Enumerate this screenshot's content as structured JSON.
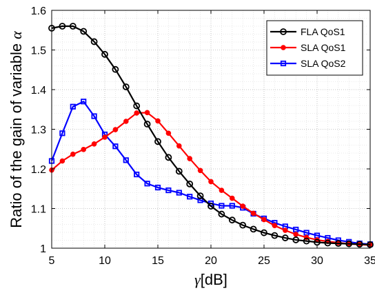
{
  "chart_data": {
    "type": "line",
    "xlabel": "γ[dB]",
    "ylabel": "Ratio of the gain of variable α",
    "xlim": [
      5,
      35
    ],
    "ylim": [
      1,
      1.6
    ],
    "xticks": [
      5,
      10,
      15,
      20,
      25,
      30,
      35
    ],
    "yticks": [
      1,
      1.1,
      1.2,
      1.3,
      1.4,
      1.5,
      1.6
    ],
    "xtick_labels": [
      "5",
      "10",
      "15",
      "20",
      "25",
      "30",
      "35"
    ],
    "ytick_labels": [
      "1",
      "1.1",
      "1.2",
      "1.3",
      "1.4",
      "1.5",
      "1.6"
    ],
    "grid": "dotted major and minor",
    "legend_position": "top-right",
    "x": [
      5,
      6,
      7,
      8,
      9,
      10,
      11,
      12,
      13,
      14,
      15,
      16,
      17,
      18,
      19,
      20,
      21,
      22,
      23,
      24,
      25,
      26,
      27,
      28,
      29,
      30,
      31,
      32,
      33,
      34,
      35
    ],
    "series": [
      {
        "name": "FLA QoS1",
        "color": "#000000",
        "marker": "circle",
        "values": [
          1.555,
          1.56,
          1.56,
          1.547,
          1.521,
          1.489,
          1.451,
          1.407,
          1.359,
          1.313,
          1.269,
          1.229,
          1.194,
          1.162,
          1.132,
          1.106,
          1.086,
          1.071,
          1.058,
          1.048,
          1.039,
          1.032,
          1.026,
          1.021,
          1.018,
          1.015,
          1.013,
          1.012,
          1.011,
          1.01,
          1.009
        ]
      },
      {
        "name": "SLA QoS1",
        "color": "#ff0000",
        "marker": "dot",
        "values": [
          1.197,
          1.22,
          1.237,
          1.249,
          1.263,
          1.28,
          1.299,
          1.32,
          1.341,
          1.342,
          1.321,
          1.29,
          1.258,
          1.226,
          1.196,
          1.168,
          1.146,
          1.126,
          1.106,
          1.088,
          1.072,
          1.057,
          1.045,
          1.035,
          1.027,
          1.021,
          1.017,
          1.014,
          1.011,
          1.009,
          1.008
        ]
      },
      {
        "name": "SLA QoS2",
        "color": "#0000ff",
        "marker": "square",
        "values": [
          1.22,
          1.29,
          1.357,
          1.37,
          1.333,
          1.287,
          1.257,
          1.222,
          1.186,
          1.163,
          1.153,
          1.146,
          1.14,
          1.13,
          1.121,
          1.113,
          1.107,
          1.107,
          1.102,
          1.087,
          1.075,
          1.064,
          1.055,
          1.047,
          1.039,
          1.032,
          1.026,
          1.02,
          1.016,
          1.012,
          1.01
        ]
      }
    ]
  }
}
